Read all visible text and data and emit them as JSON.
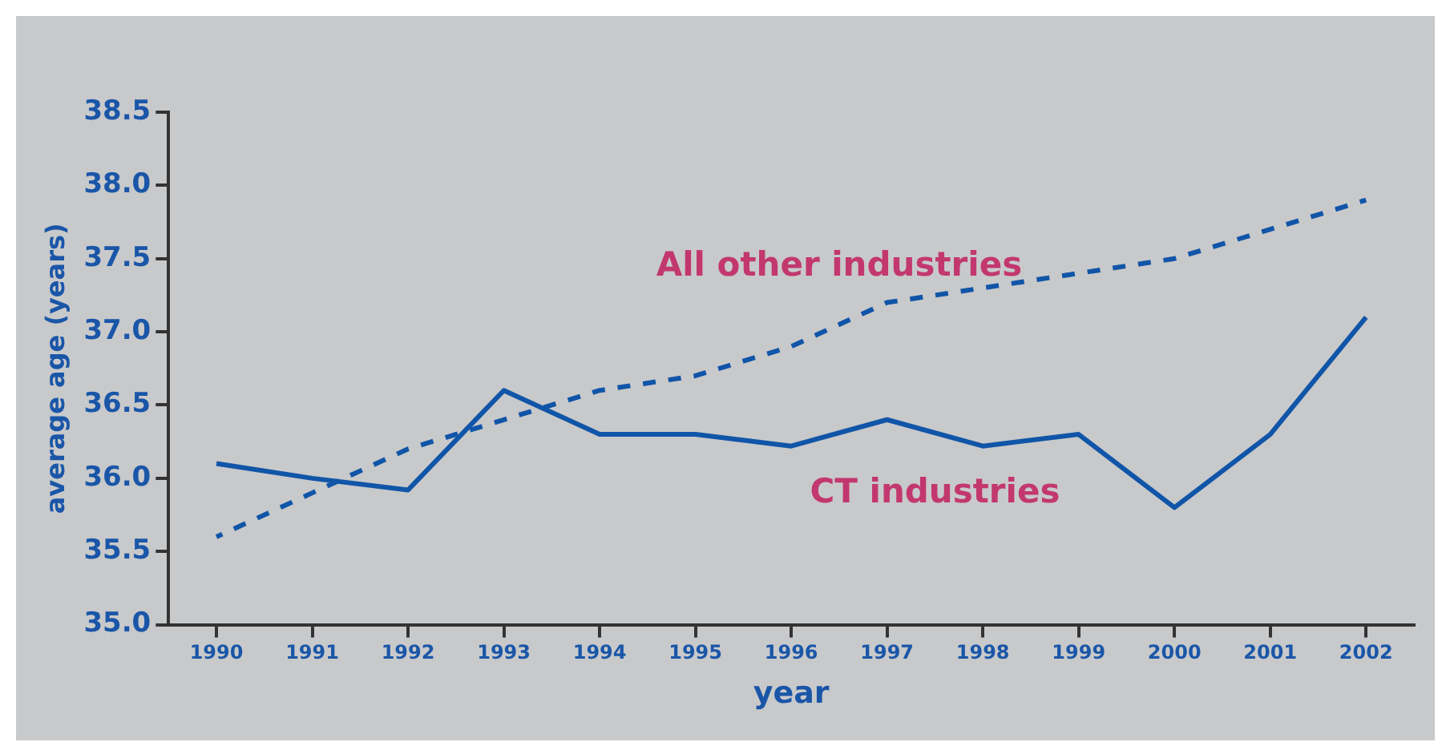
{
  "chart_data": {
    "type": "line",
    "xlabel": "year",
    "ylabel": "average age (years)",
    "categories": [
      "1990",
      "1991",
      "1992",
      "1993",
      "1994",
      "1995",
      "1996",
      "1997",
      "1998",
      "1999",
      "2000",
      "2001",
      "2002"
    ],
    "series": [
      {
        "name": "CT industries",
        "color": "#1055a8",
        "line_style": "solid",
        "values": [
          36.1,
          36.0,
          35.92,
          36.6,
          36.3,
          36.3,
          36.22,
          36.4,
          36.22,
          36.3,
          35.8,
          36.3,
          37.1
        ]
      },
      {
        "name": "All other industries",
        "color": "#1055a8",
        "line_style": "dashed",
        "values": [
          35.6,
          35.9,
          36.2,
          36.4,
          36.6,
          36.7,
          36.9,
          37.2,
          37.3,
          37.4,
          37.5,
          37.7,
          37.9
        ]
      }
    ],
    "ylim": [
      35,
      38.5
    ],
    "yticks": [
      {
        "value": 35,
        "label": "35.0"
      },
      {
        "value": 35.5,
        "label": "35.5"
      },
      {
        "value": 36,
        "label": "36.0"
      },
      {
        "value": 36.5,
        "label": "36.5"
      },
      {
        "value": 37,
        "label": "37.0"
      },
      {
        "value": 37.5,
        "label": "37.5"
      },
      {
        "value": 38,
        "label": "38.0"
      },
      {
        "value": 38.5,
        "label": "38.5"
      }
    ],
    "grid": false,
    "legend": false,
    "marker": "none"
  }
}
